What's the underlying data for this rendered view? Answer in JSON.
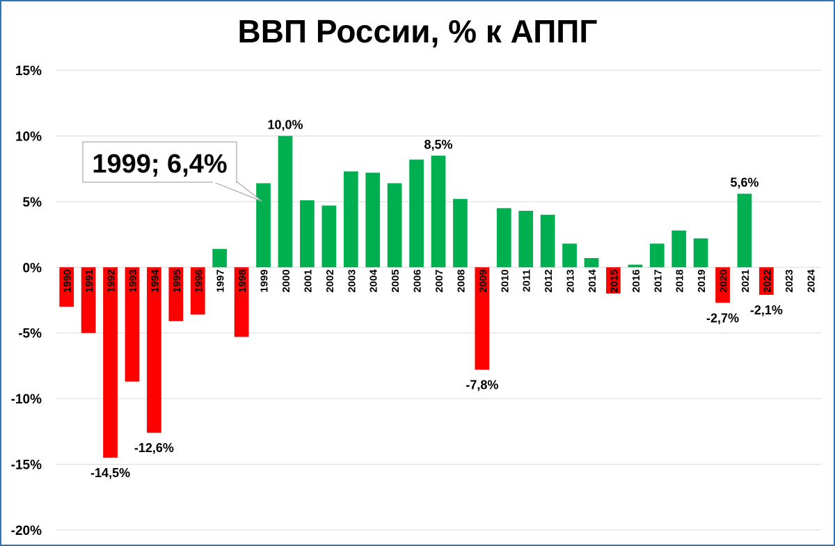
{
  "chart_data": {
    "type": "bar",
    "title": "ВВП России, % к АППГ",
    "xlabel": "",
    "ylabel": "",
    "ylim": [
      -20,
      15
    ],
    "ytick_values": [
      15,
      10,
      5,
      0,
      -5,
      -10,
      -15,
      -20
    ],
    "ytick_labels": [
      "15%",
      "10%",
      "5%",
      "0%",
      "-5%",
      "-10%",
      "-15%",
      "-20%"
    ],
    "grid": true,
    "legend": "none",
    "categories": [
      "1990",
      "1991",
      "1992",
      "1993",
      "1994",
      "1995",
      "1996",
      "1997",
      "1998",
      "1999",
      "2000",
      "2001",
      "2002",
      "2003",
      "2004",
      "2005",
      "2006",
      "2007",
      "2008",
      "2009",
      "2010",
      "2011",
      "2012",
      "2013",
      "2014",
      "2015",
      "2016",
      "2017",
      "2018",
      "2019",
      "2020",
      "2021",
      "2022",
      "2023",
      "2024"
    ],
    "values": [
      -3.0,
      -5.0,
      -14.5,
      -8.7,
      -12.6,
      -4.1,
      -3.6,
      1.4,
      -5.3,
      6.4,
      10.0,
      5.1,
      4.7,
      7.3,
      7.2,
      6.4,
      8.2,
      8.5,
      5.2,
      -7.8,
      4.5,
      4.3,
      4.0,
      1.8,
      0.7,
      -2.0,
      0.2,
      1.8,
      2.8,
      2.2,
      -2.7,
      5.6,
      -2.1,
      null,
      null
    ],
    "data_labels": [
      {
        "category": "1992",
        "text": "-14,5%"
      },
      {
        "category": "1994",
        "text": "-12,6%"
      },
      {
        "category": "2000",
        "text": "10,0%"
      },
      {
        "category": "2007",
        "text": "8,5%"
      },
      {
        "category": "2009",
        "text": "-7,8%"
      },
      {
        "category": "2020",
        "text": "-2,7%"
      },
      {
        "category": "2021",
        "text": "5,6%"
      },
      {
        "category": "2022",
        "text": "-2,1%"
      }
    ],
    "callout": {
      "category": "1999",
      "text": "1999; 6,4%"
    },
    "colors": {
      "positive": "#00b050",
      "negative": "#ff0000",
      "grid": "#d9d9d9",
      "frame": "#2e75b6"
    }
  }
}
